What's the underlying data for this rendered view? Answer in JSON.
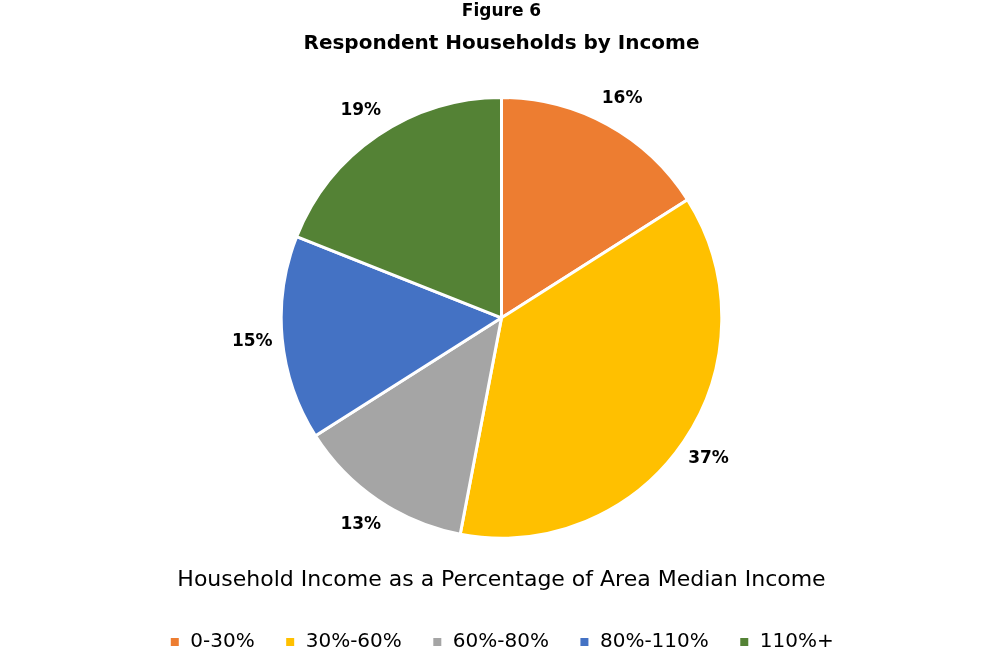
{
  "chart_data": {
    "type": "pie",
    "title": "Respondent Households by Income",
    "annotations": [
      "Figure 6"
    ],
    "categories": [
      "0-30%",
      "30%-60%",
      "60%-80%",
      "80%-110%",
      "110%+"
    ],
    "values": [
      16,
      37,
      13,
      15,
      19
    ],
    "colors": [
      "#ed7d31",
      "#ffc000",
      "#a5a5a5",
      "#4472c4",
      "#548235"
    ],
    "value_labels": [
      "16%",
      "37%",
      "13%",
      "15%",
      "19%"
    ],
    "legend": "bottom",
    "legend_title": "Household Income as a Percentage of Area Median Income"
  }
}
